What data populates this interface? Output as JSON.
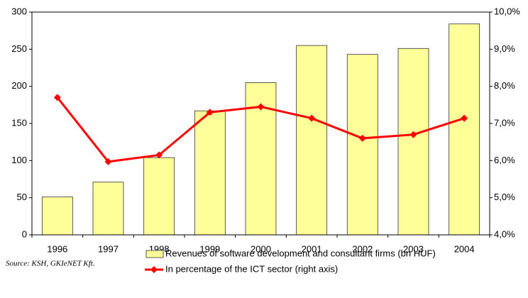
{
  "chart_data": {
    "type": "bar",
    "source": "Source: KSH, GKIeNET Kft.",
    "categories": [
      "1996",
      "1997",
      "1998",
      "1999",
      "2000",
      "2001",
      "2002",
      "2003",
      "2004"
    ],
    "series": [
      {
        "name": "Revenues of software development and consultant firms (bn HUF)",
        "type": "bar",
        "color": "#ffff99",
        "values": [
          51,
          71,
          104,
          167,
          205,
          255,
          243,
          251,
          284
        ]
      },
      {
        "name": "In percentage of the  ICT sector (right axis)",
        "type": "line",
        "axis": "y2",
        "color": "#ff0000",
        "values": [
          7.7,
          5.97,
          6.15,
          7.3,
          7.45,
          7.14,
          6.6,
          6.7,
          7.14
        ]
      }
    ],
    "ylim": [
      0,
      300
    ],
    "yticks": [
      0,
      50,
      100,
      150,
      200,
      250,
      300
    ],
    "y2lim": [
      4.0,
      10.0
    ],
    "y2ticks": [
      {
        "value": 4.0,
        "label": "4,0%"
      },
      {
        "value": 5.0,
        "label": "5,0%"
      },
      {
        "value": 6.0,
        "label": "6,0%"
      },
      {
        "value": 7.0,
        "label": "7,0%"
      },
      {
        "value": 8.0,
        "label": "8,0%"
      },
      {
        "value": 9.0,
        "label": "9,0%"
      },
      {
        "value": 10.0,
        "label": "10,0%"
      }
    ],
    "grid": false
  }
}
